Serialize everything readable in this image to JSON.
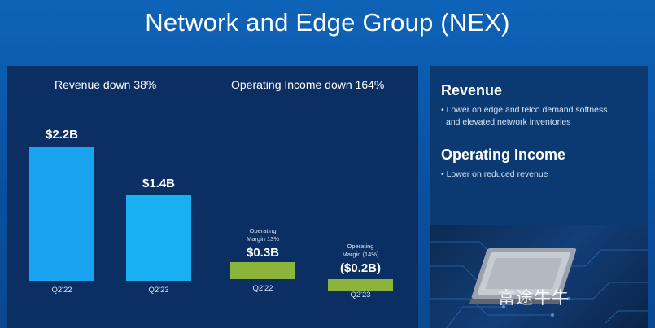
{
  "page": {
    "title": "Network and Edge Group (NEX)",
    "watermark": "富途牛牛"
  },
  "chart_data": [
    {
      "type": "bar",
      "title": "Revenue down 38%",
      "categories": [
        "Q2'22",
        "Q2'23"
      ],
      "values": [
        2.2,
        1.4
      ],
      "value_labels": [
        "$2.2B",
        "$1.4B"
      ],
      "unit": "$B",
      "colors": [
        "#1aa3ee",
        "#18b0f0"
      ]
    },
    {
      "type": "bar",
      "title": "Operating Income down 164%",
      "categories": [
        "Q2'22",
        "Q2'23"
      ],
      "values": [
        0.3,
        -0.2
      ],
      "value_labels": [
        "$0.3B",
        "($0.2B)"
      ],
      "margin_labels": [
        [
          "Operating",
          "Margin 13%"
        ],
        [
          "Operating",
          "Margin (14%)"
        ]
      ],
      "unit": "$B",
      "colors": [
        "#8ab43a",
        "#8ab43a"
      ]
    }
  ],
  "sidebar": {
    "sections": [
      {
        "heading": "Revenue",
        "bullets": [
          "• Lower on edge and telco demand softness",
          "and elevated network inventories"
        ]
      },
      {
        "heading": "Operating Income",
        "bullets": [
          "• Lower on reduced revenue"
        ]
      }
    ]
  }
}
